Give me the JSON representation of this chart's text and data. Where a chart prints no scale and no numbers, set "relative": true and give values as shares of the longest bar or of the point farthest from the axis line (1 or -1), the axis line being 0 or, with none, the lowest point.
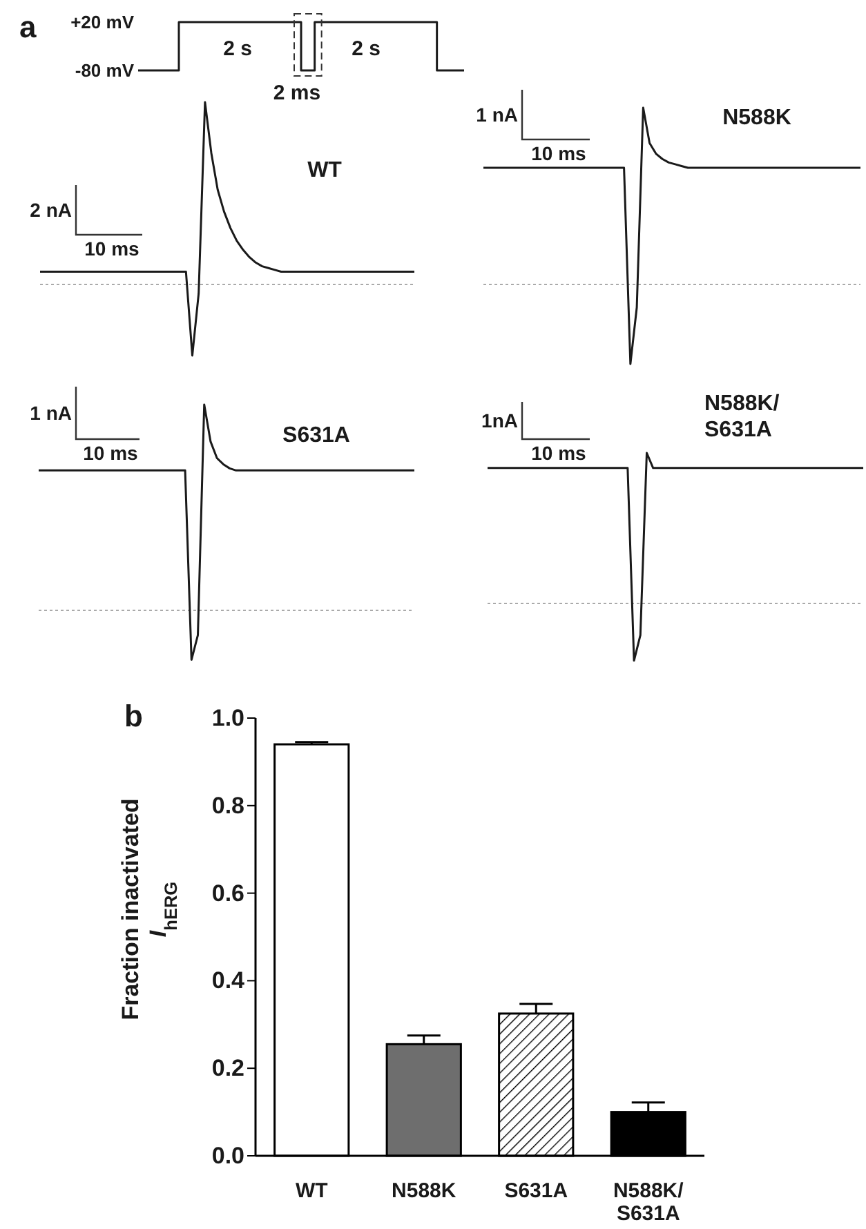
{
  "chart_data": [
    {
      "type": "step",
      "annotations": [
        "a",
        "2 s",
        "2 ms",
        "2 s"
      ],
      "categories": [
        null,
        null,
        null,
        null,
        null,
        null,
        null,
        null,
        null,
        null,
        null,
        null,
        null,
        null,
        null,
        null,
        null,
        null,
        null,
        null,
        null,
        null,
        null,
        null,
        null
      ],
      "series": [
        {
          "color": "#1a1a1a",
          "values": [
            -80,
            -80,
            -80,
            20,
            20,
            20,
            20,
            20,
            20,
            20,
            20,
            20,
            -80,
            20,
            20,
            20,
            20,
            20,
            20,
            20,
            20,
            20,
            -80,
            -80,
            -80
          ]
        }
      ],
      "ylim": [
        -80,
        20
      ],
      "yticks": [
        {
          "value": 20,
          "label": "+20 mV"
        },
        {
          "value": -80,
          "label": "-80 mV"
        }
      ],
      "tick_labels": "y"
    },
    {
      "type": "line",
      "title": "WT",
      "relative": true,
      "annotations": [
        "2 nA",
        "10 ms"
      ],
      "ref_lines": [
        {
          "axis": "y",
          "value": 0,
          "color": "#aaaaaa",
          "line_style": "dotted"
        }
      ],
      "categories": [
        null,
        null,
        null,
        null,
        null,
        null,
        null,
        null,
        null,
        null,
        null,
        null,
        null,
        null,
        null,
        null,
        null,
        null,
        null,
        null,
        null,
        null,
        null,
        null,
        null,
        null,
        null,
        null,
        null,
        null,
        null,
        null,
        null,
        null,
        null,
        null,
        null,
        null,
        null,
        null,
        null,
        null,
        null,
        null,
        null,
        null,
        null,
        null,
        null,
        null,
        null,
        null,
        null,
        null,
        null,
        null,
        null,
        null,
        null,
        null
      ],
      "series": [
        {
          "color": "#1a1a1a",
          "values": [
            0.07,
            0.07,
            0.07,
            0.07,
            0.07,
            0.07,
            0.07,
            0.07,
            0.07,
            0.07,
            0.07,
            0.07,
            0.07,
            0.07,
            0.07,
            0.07,
            0.07,
            0.07,
            0.07,
            0.07,
            0.07,
            0.07,
            0.07,
            0.07,
            -0.39,
            -0.05,
            1.0,
            0.72,
            0.52,
            0.4,
            0.31,
            0.24,
            0.19,
            0.15,
            0.12,
            0.1,
            0.09,
            0.08,
            0.07,
            0.07,
            0.07,
            0.07,
            0.07,
            0.07,
            0.07,
            0.07,
            0.07,
            0.07,
            0.07,
            0.07,
            0.07,
            0.07,
            0.07,
            0.07,
            0.07,
            0.07,
            0.07,
            0.07,
            0.07,
            0.07
          ]
        }
      ]
    },
    {
      "type": "line",
      "title": "N588K",
      "relative": true,
      "annotations": [
        "1 nA",
        "10 ms"
      ],
      "ref_lines": [
        {
          "axis": "y",
          "value": 0,
          "color": "#aaaaaa",
          "line_style": "dotted"
        }
      ],
      "categories": [
        null,
        null,
        null,
        null,
        null,
        null,
        null,
        null,
        null,
        null,
        null,
        null,
        null,
        null,
        null,
        null,
        null,
        null,
        null,
        null,
        null,
        null,
        null,
        null,
        null,
        null,
        null,
        null,
        null,
        null,
        null,
        null,
        null,
        null,
        null,
        null,
        null,
        null,
        null,
        null,
        null,
        null,
        null,
        null,
        null,
        null,
        null,
        null,
        null,
        null,
        null,
        null,
        null,
        null,
        null,
        null,
        null,
        null,
        null,
        null
      ],
      "series": [
        {
          "color": "#1a1a1a",
          "values": [
            0.66,
            0.66,
            0.66,
            0.66,
            0.66,
            0.66,
            0.66,
            0.66,
            0.66,
            0.66,
            0.66,
            0.66,
            0.66,
            0.66,
            0.66,
            0.66,
            0.66,
            0.66,
            0.66,
            0.66,
            0.66,
            0.66,
            0.66,
            -0.45,
            -0.13,
            1.0,
            0.8,
            0.74,
            0.71,
            0.69,
            0.68,
            0.67,
            0.66,
            0.66,
            0.66,
            0.66,
            0.66,
            0.66,
            0.66,
            0.66,
            0.66,
            0.66,
            0.66,
            0.66,
            0.66,
            0.66,
            0.66,
            0.66,
            0.66,
            0.66,
            0.66,
            0.66,
            0.66,
            0.66,
            0.66,
            0.66,
            0.66,
            0.66,
            0.66,
            0.66
          ]
        }
      ]
    },
    {
      "type": "line",
      "title": "S631A",
      "relative": true,
      "annotations": [
        "1 nA",
        "10 ms"
      ],
      "ref_lines": [
        {
          "axis": "y",
          "value": 0,
          "color": "#aaaaaa",
          "line_style": "dotted"
        }
      ],
      "categories": [
        null,
        null,
        null,
        null,
        null,
        null,
        null,
        null,
        null,
        null,
        null,
        null,
        null,
        null,
        null,
        null,
        null,
        null,
        null,
        null,
        null,
        null,
        null,
        null,
        null,
        null,
        null,
        null,
        null,
        null,
        null,
        null,
        null,
        null,
        null,
        null,
        null,
        null,
        null,
        null,
        null,
        null,
        null,
        null,
        null,
        null,
        null,
        null,
        null,
        null,
        null,
        null,
        null,
        null,
        null,
        null,
        null,
        null,
        null,
        null
      ],
      "series": [
        {
          "color": "#1a1a1a",
          "values": [
            0.68,
            0.68,
            0.68,
            0.68,
            0.68,
            0.68,
            0.68,
            0.68,
            0.68,
            0.68,
            0.68,
            0.68,
            0.68,
            0.68,
            0.68,
            0.68,
            0.68,
            0.68,
            0.68,
            0.68,
            0.68,
            0.68,
            0.68,
            0.68,
            -0.24,
            -0.12,
            1.0,
            0.82,
            0.74,
            0.71,
            0.69,
            0.68,
            0.68,
            0.68,
            0.68,
            0.68,
            0.68,
            0.68,
            0.68,
            0.68,
            0.68,
            0.68,
            0.68,
            0.68,
            0.68,
            0.68,
            0.68,
            0.68,
            0.68,
            0.68,
            0.68,
            0.68,
            0.68,
            0.68,
            0.68,
            0.68,
            0.68,
            0.68,
            0.68,
            0.68
          ]
        }
      ]
    },
    {
      "type": "line",
      "title": "N588K/ S631A",
      "relative": true,
      "annotations": [
        "1nA",
        "10 ms"
      ],
      "ref_lines": [
        {
          "axis": "y",
          "value": 0,
          "color": "#aaaaaa",
          "line_style": "dotted"
        }
      ],
      "categories": [
        null,
        null,
        null,
        null,
        null,
        null,
        null,
        null,
        null,
        null,
        null,
        null,
        null,
        null,
        null,
        null,
        null,
        null,
        null,
        null,
        null,
        null,
        null,
        null,
        null,
        null,
        null,
        null,
        null,
        null,
        null,
        null,
        null,
        null,
        null,
        null,
        null,
        null,
        null,
        null,
        null,
        null,
        null,
        null,
        null,
        null,
        null,
        null,
        null,
        null,
        null,
        null,
        null,
        null,
        null,
        null,
        null,
        null,
        null,
        null
      ],
      "series": [
        {
          "color": "#1a1a1a",
          "values": [
            0.9,
            0.9,
            0.9,
            0.9,
            0.9,
            0.9,
            0.9,
            0.9,
            0.9,
            0.9,
            0.9,
            0.9,
            0.9,
            0.9,
            0.9,
            0.9,
            0.9,
            0.9,
            0.9,
            0.9,
            0.9,
            0.9,
            0.9,
            -0.38,
            -0.21,
            1.0,
            0.9,
            0.9,
            0.9,
            0.9,
            0.9,
            0.9,
            0.9,
            0.9,
            0.9,
            0.9,
            0.9,
            0.9,
            0.9,
            0.9,
            0.9,
            0.9,
            0.9,
            0.9,
            0.9,
            0.9,
            0.9,
            0.9,
            0.9,
            0.9,
            0.9,
            0.9,
            0.9,
            0.9,
            0.9,
            0.9,
            0.9,
            0.9,
            0.9,
            0.9
          ]
        }
      ]
    },
    {
      "type": "bar",
      "annotations": [
        "b"
      ],
      "ylabel": "Fraction inactivated I$_{hERG}$",
      "categories": [
        "WT",
        "N588K",
        "S631A",
        "N588K/ S631A"
      ],
      "values": [
        0.94,
        0.255,
        0.325,
        0.1
      ],
      "errors": [
        0.005,
        0.02,
        0.022,
        0.022
      ],
      "colors": [
        "#ffffff",
        "#6e6e6e",
        "#000000",
        "#000000"
      ],
      "ylim": [
        0,
        1
      ],
      "yticks": [
        {
          "value": 0,
          "label": "0.0"
        },
        {
          "value": 0.2,
          "label": "0.2"
        },
        {
          "value": 0.4,
          "label": "0.4"
        },
        {
          "value": 0.6,
          "label": "0.6"
        },
        {
          "value": 0.8,
          "label": "0.8"
        },
        {
          "value": 1,
          "label": "1.0"
        }
      ]
    }
  ]
}
